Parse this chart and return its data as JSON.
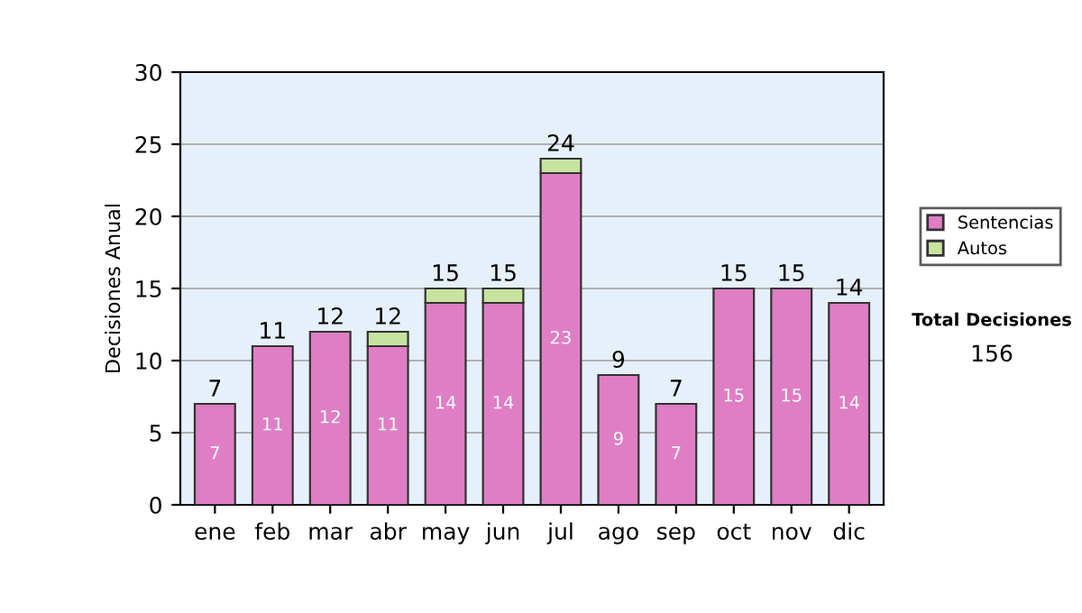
{
  "chart_data": {
    "type": "bar",
    "stacked": true,
    "ylabel": "Decisiones Anual",
    "categories": [
      "ene",
      "feb",
      "mar",
      "abr",
      "may",
      "jun",
      "jul",
      "ago",
      "sep",
      "oct",
      "nov",
      "dic"
    ],
    "series": [
      {
        "name": "Sentencias",
        "color": "#df7ec5",
        "values": [
          7,
          11,
          12,
          11,
          14,
          14,
          23,
          9,
          7,
          15,
          15,
          14
        ],
        "value_labels": [
          "7",
          "11",
          "12",
          "11",
          "14",
          "14",
          "23",
          "9",
          "7",
          "15",
          "15",
          "14"
        ]
      },
      {
        "name": "Autos",
        "color": "#c6e3a0",
        "values": [
          null,
          null,
          null,
          1,
          1,
          1,
          1,
          null,
          null,
          null,
          null,
          null
        ]
      }
    ],
    "totals": [
      "7",
      "11",
      "12",
      "12",
      "15",
      "15",
      "24",
      "9",
      "7",
      "15",
      "15",
      "14"
    ],
    "ylim": [
      0,
      30
    ],
    "yticks": [
      0,
      5,
      10,
      15,
      20,
      25,
      30
    ],
    "grid": "y",
    "legend": "right",
    "annotations": [
      "Total Decisiones",
      "156"
    ]
  }
}
